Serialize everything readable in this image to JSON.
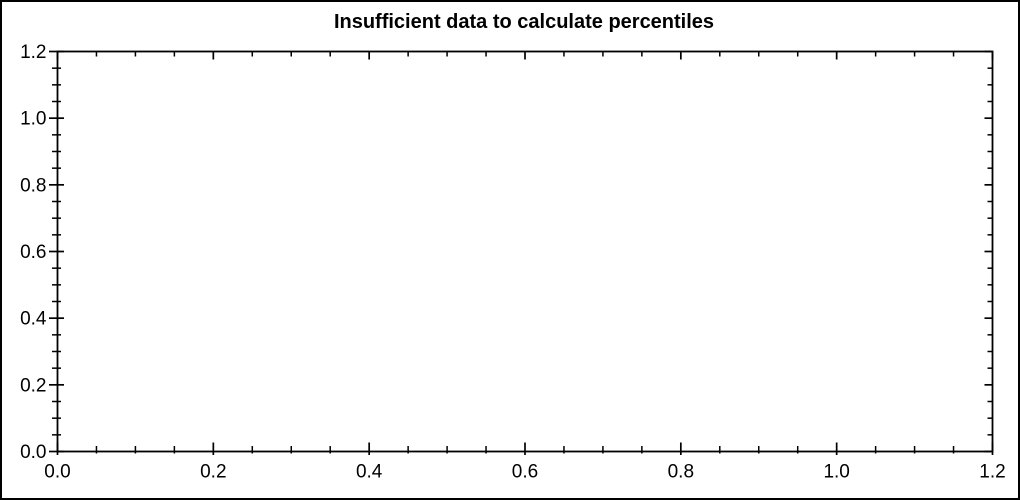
{
  "figure": {
    "background": "#ffffff",
    "border_color": "#000000"
  },
  "chart_data": {
    "type": "scatter",
    "title": "Insufficient data to calculate percentiles",
    "subtitle": "",
    "xlabel": "",
    "ylabel": "",
    "xlim": [
      0.0,
      1.2
    ],
    "ylim": [
      0.0,
      1.2
    ],
    "xticks": [
      0.0,
      0.2,
      0.4,
      0.6,
      0.8,
      1.0,
      1.2
    ],
    "xtick_labels": [
      "0.0",
      "0.2",
      "0.4",
      "0.6",
      "0.8",
      "1.0",
      "1.2"
    ],
    "yticks": [
      0.0,
      0.2,
      0.4,
      0.6,
      0.8,
      1.0,
      1.2
    ],
    "ytick_labels": [
      "0.0",
      "0.2",
      "0.4",
      "0.6",
      "0.8",
      "1.0",
      "1.2"
    ],
    "minor_tick_interval": 0.05,
    "minor_ticks_per_major": 3,
    "grid": false,
    "legend": null,
    "frame": "box-ticks-all-sides",
    "series": [],
    "axis_color": "#000000",
    "text_color": "#000000",
    "plot_background": "#ffffff"
  }
}
